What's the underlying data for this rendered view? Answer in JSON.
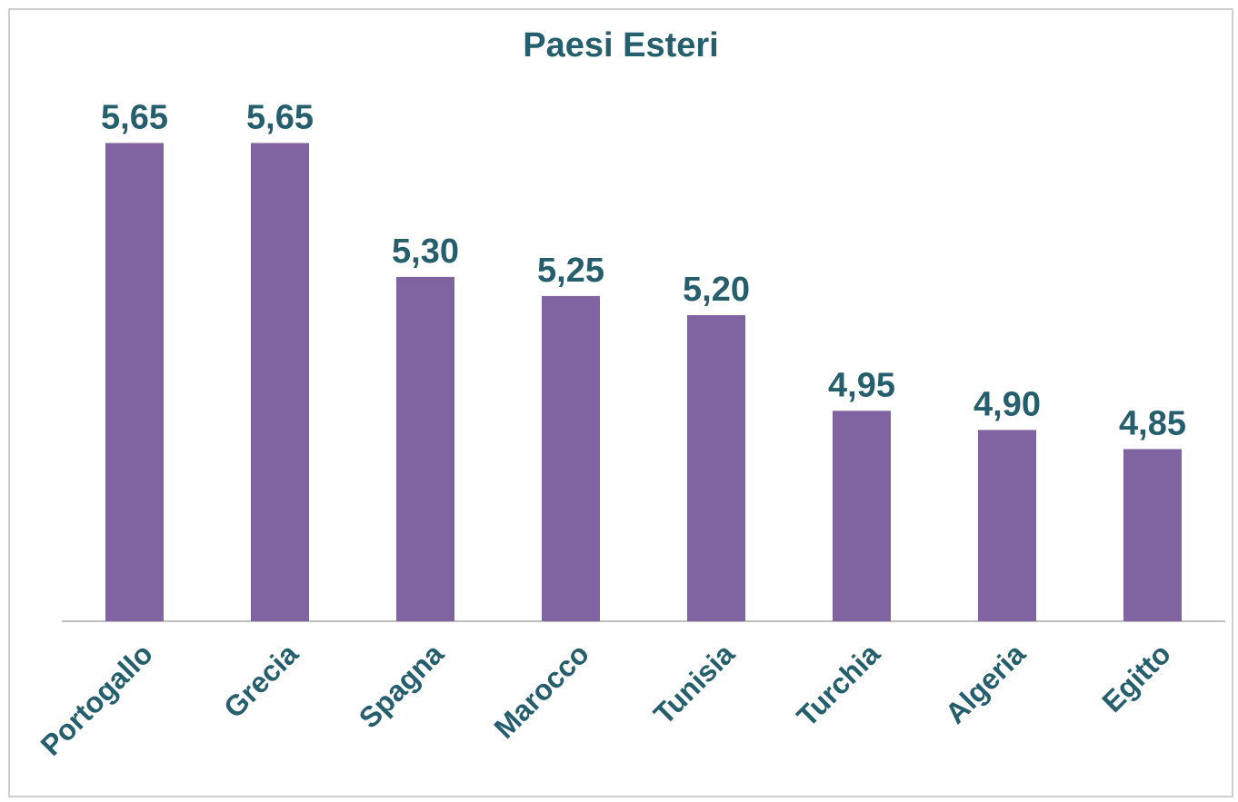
{
  "chart_data": {
    "type": "bar",
    "title": "Paesi Esteri",
    "categories": [
      "Portogallo",
      "Grecia",
      "Spagna",
      "Marocco",
      "Tunisia",
      "Turchia",
      "Algeria",
      "Egitto"
    ],
    "values": [
      5.65,
      5.65,
      5.3,
      5.25,
      5.2,
      4.95,
      4.9,
      4.85
    ],
    "value_labels": [
      "5,65",
      "5,65",
      "5,30",
      "5,25",
      "5,20",
      "4,95",
      "4,90",
      "4,85"
    ],
    "color": "#8064a2",
    "ylim": [
      4.4,
      6.0
    ]
  }
}
